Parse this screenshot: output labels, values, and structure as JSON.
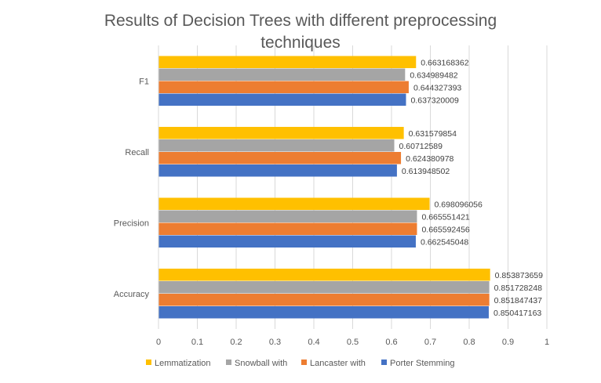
{
  "chart_data": {
    "type": "bar",
    "orientation": "horizontal",
    "title_line1": "Results of Decision Trees with different preprocessing",
    "title_line2": "techniques",
    "categories": [
      "Accuracy",
      "Precision",
      "Recall",
      "F1"
    ],
    "series": [
      {
        "name": "Porter Stemming",
        "color": "#4472C4",
        "values": [
          0.850417163,
          0.662545048,
          0.613948502,
          0.637320009
        ]
      },
      {
        "name": "Lancaster with",
        "color": "#ED7D31",
        "values": [
          0.851847437,
          0.665592456,
          0.624380978,
          0.644327393
        ]
      },
      {
        "name": "Snowball with",
        "color": "#A5A5A5",
        "values": [
          0.851728248,
          0.665551421,
          0.60712589,
          0.634989482
        ]
      },
      {
        "name": "Lemmatization",
        "color": "#FFC000",
        "values": [
          0.853873659,
          0.698096056,
          0.631579854,
          0.663168362
        ]
      }
    ],
    "value_labels": {
      "Porter Stemming": [
        "0.850417163",
        "0.662545048",
        "0.613948502",
        "0.637320009"
      ],
      "Lancaster with": [
        "0.851847437",
        "0.665592456",
        "0.624380978",
        "0.644327393"
      ],
      "Snowball with": [
        "0.851728248",
        "0.665551421",
        "0.60712589",
        "0.634989482"
      ],
      "Lemmatization": [
        "0.853873659",
        "0.698096056",
        "0.631579854",
        "0.663168362"
      ]
    },
    "xlim": [
      0,
      1
    ],
    "x_ticks": [
      "0",
      "0.1",
      "0.2",
      "0.3",
      "0.4",
      "0.5",
      "0.6",
      "0.7",
      "0.8",
      "0.9",
      "1"
    ],
    "legend_order": [
      "Lemmatization",
      "Snowball with",
      "Lancaster with",
      "Porter Stemming"
    ],
    "legend_position": "bottom",
    "grid": true
  }
}
